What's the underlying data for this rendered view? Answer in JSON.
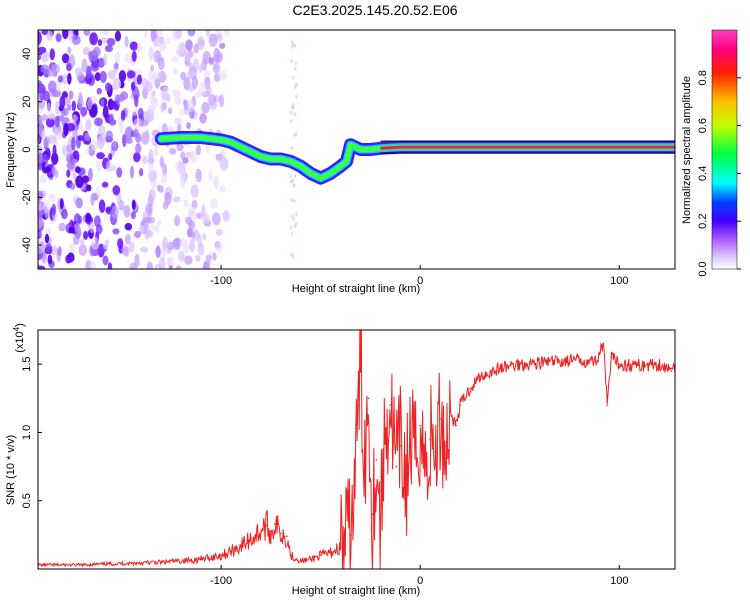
{
  "title": "C2E3.2025.145.20.52.E06",
  "chart_data": [
    {
      "type": "heatmap",
      "xlabel": "Height of straight line (km)",
      "ylabel": "Frequency (Hz)",
      "xlim": [
        -192,
        128
      ],
      "ylim": [
        -50,
        50
      ],
      "xticks": [
        -100,
        0,
        100
      ],
      "yticks": [
        -40,
        -20,
        0,
        20,
        40
      ],
      "ridge": {
        "name": "signal ridge",
        "x": [
          -130,
          -120,
          -110,
          -100,
          -95,
          -90,
          -85,
          -80,
          -75,
          -70,
          -65,
          -60,
          -55,
          -50,
          -45,
          -40,
          -37,
          -35,
          -30,
          -25,
          -20,
          -10,
          0,
          10,
          20,
          50,
          90,
          128
        ],
        "y": [
          4.5,
          5,
          5,
          4,
          3,
          1,
          -1,
          -3,
          -4,
          -4,
          -5,
          -7,
          -10,
          -12,
          -10,
          -7,
          -5,
          2,
          0,
          0,
          0.5,
          1,
          1,
          1,
          1,
          1,
          1,
          1
        ]
      },
      "colorbar": {
        "label": "Normalized spectral amplitude",
        "range": [
          0,
          1
        ],
        "ticks": [
          0.0,
          0.2,
          0.4,
          0.6,
          0.8
        ],
        "tick_labels": [
          "0.0",
          "0.2",
          "0.4",
          "0.6",
          "0.8"
        ],
        "colormap": [
          "#ffffff",
          "#d8c0ff",
          "#a000ff",
          "#0000ff",
          "#00ffff",
          "#00ff00",
          "#ffff00",
          "#ff8000",
          "#ff0000",
          "#ff00a0"
        ]
      }
    },
    {
      "type": "line",
      "xlabel": "Height of straight line (km)",
      "ylabel": "SNR (10 * v/v)",
      "y_multiplier": "(x10",
      "y_multiplier_exp": "4",
      "y_multiplier_close": ")",
      "xlim": [
        -192,
        128
      ],
      "ylim": [
        0,
        17500
      ],
      "xticks": [
        -100,
        0,
        100
      ],
      "yticks": [
        5000,
        10000,
        15000
      ],
      "ytick_labels": [
        "0.5",
        "1.0",
        "1.5"
      ],
      "series": [
        {
          "color": "#ee2222",
          "x": [
            -192,
            -170,
            -150,
            -130,
            -110,
            -100,
            -95,
            -90,
            -85,
            -80,
            -77,
            -75,
            -73,
            -70,
            -67,
            -65,
            -60,
            -55,
            -50,
            -45,
            -40,
            -35,
            -33,
            -31,
            -30,
            -28,
            -26,
            -24,
            -22,
            -20,
            -18,
            -15,
            -12,
            -10,
            -7,
            -5,
            -2,
            0,
            3,
            5,
            8,
            10,
            13,
            15,
            18,
            20,
            25,
            30,
            40,
            50,
            60,
            70,
            80,
            88,
            92,
            94,
            96,
            100,
            110,
            120,
            126,
            128
          ],
          "y": [
            300,
            300,
            400,
            500,
            700,
            1000,
            1300,
            1700,
            2200,
            2800,
            3200,
            2500,
            3300,
            2600,
            2400,
            1000,
            600,
            700,
            1000,
            1200,
            1600,
            2500,
            6000,
            12000,
            15500,
            8000,
            12500,
            4000,
            8000,
            2500,
            9500,
            12000,
            7500,
            9000,
            6500,
            9500,
            8000,
            10500,
            7000,
            9500,
            8500,
            11000,
            9000,
            11500,
            10500,
            12000,
            13200,
            14100,
            14700,
            15000,
            15100,
            15200,
            15300,
            15200,
            16500,
            12000,
            15500,
            15000,
            14900,
            15000,
            14500,
            14800
          ]
        }
      ]
    }
  ]
}
